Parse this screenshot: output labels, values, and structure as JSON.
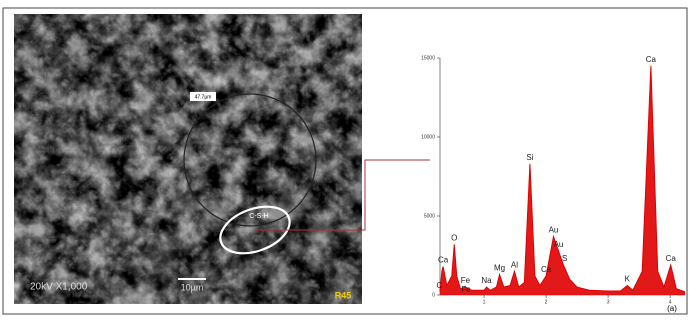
{
  "chart_data": {
    "type": "line",
    "x": [
      0.29,
      0.32,
      0.34,
      0.4,
      0.48,
      0.52,
      0.56,
      0.62,
      0.7,
      0.8,
      1.0,
      1.04,
      1.1,
      1.2,
      1.25,
      1.32,
      1.42,
      1.49,
      1.56,
      1.65,
      1.74,
      1.82,
      1.9,
      2.0,
      2.12,
      2.2,
      2.28,
      2.38,
      2.5,
      2.7,
      3.0,
      3.2,
      3.31,
      3.4,
      3.55,
      3.69,
      3.8,
      3.9,
      4.01,
      4.1,
      4.24
    ],
    "series": [
      {
        "color": "#e00000",
        "values": [
          200,
          1500,
          1800,
          600,
          1200,
          3200,
          1200,
          400,
          500,
          300,
          300,
          500,
          300,
          500,
          1300,
          500,
          600,
          1500,
          500,
          800,
          8300,
          1200,
          600,
          1200,
          3700,
          2800,
          1900,
          1000,
          500,
          300,
          250,
          250,
          600,
          300,
          1500,
          14500,
          1500,
          500,
          1900,
          400,
          200
        ]
      }
    ],
    "xlim": [
      0.29,
      4.24
    ],
    "xticks": [
      1,
      2,
      3,
      4
    ],
    "ylim": [
      0,
      15000
    ],
    "yticks": [
      0,
      5000,
      10000,
      15000
    ],
    "annotations": [
      {
        "text": "C",
        "x": 0.28
      },
      {
        "text": "Ca",
        "x": 0.34
      },
      {
        "text": "Fe",
        "x": 0.7
      },
      {
        "text": "Fe",
        "x": 0.71
      },
      {
        "text": "O",
        "x": 0.52
      },
      {
        "text": "Na",
        "x": 1.04
      },
      {
        "text": "Mg",
        "x": 1.25
      },
      {
        "text": "Al",
        "x": 1.49
      },
      {
        "text": "Si",
        "x": 1.74
      },
      {
        "text": "Ca",
        "x": 2.0
      },
      {
        "text": "Au",
        "x": 2.12
      },
      {
        "text": "Au",
        "x": 2.2
      },
      {
        "text": "S",
        "x": 2.3
      },
      {
        "text": "K",
        "x": 3.31
      },
      {
        "text": "Ca",
        "x": 3.69
      },
      {
        "text": "Ca",
        "x": 4.01
      }
    ],
    "panel_label": "(a)"
  },
  "sem_image": {
    "region_label": "C-S-H",
    "measure": "47.7µm",
    "info": "20kV  X1,000",
    "scale": "10µm",
    "sample": "R45"
  }
}
